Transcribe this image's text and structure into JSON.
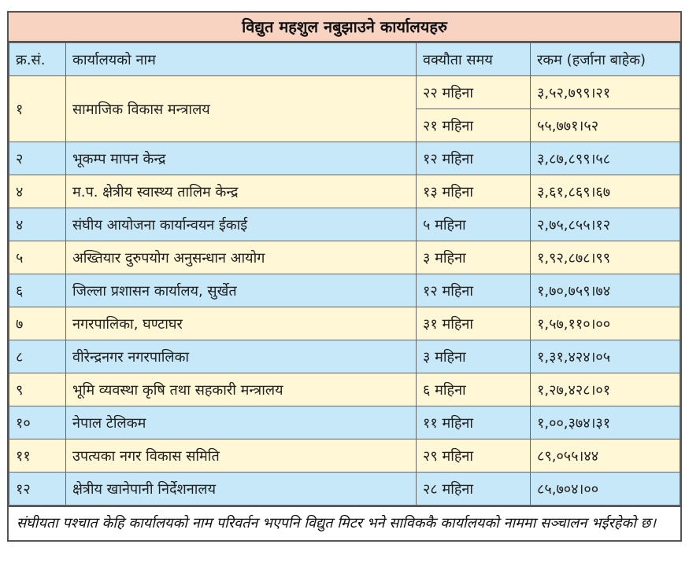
{
  "title": "विद्युत महशुल नबुझाउने कार्यालयहरु",
  "headers": [
    "क्र.सं.",
    "कार्यालयको नाम",
    "वक्यौता समय",
    "रकम (हर्जाना बाहेक)"
  ],
  "row1": {
    "sn": "१",
    "name": "सामाजिक विकास मन्त्रालय",
    "periods": [
      "२२ महिना",
      "२१ महिना"
    ],
    "amounts": [
      "३,५२,७९९।२१",
      "५५,७७१।५२"
    ]
  },
  "rows": [
    {
      "sn": "२",
      "name": "भूकम्प मापन केन्द्र",
      "period": "१२ महिना",
      "amount": "३,८७,८९९।५८"
    },
    {
      "sn": "४",
      "name": "म.प. क्षेत्रीय स्वास्थ्य तालिम केन्द्र",
      "period": "१३ महिना",
      "amount": "३,६१,८६९।६७"
    },
    {
      "sn": "४",
      "name": "संघीय आयोजना कार्यान्वयन ईकाई",
      "period": "५ महिना",
      "amount": "२,७५,८५५।१२"
    },
    {
      "sn": "५",
      "name": "अख्तियार दुरुपयोग अनुसन्धान आयोग",
      "period": "३ महिना",
      "amount": "१,९२,८७८।९९"
    },
    {
      "sn": "६",
      "name": "जिल्ला प्रशासन कार्यालय, सुर्खेत",
      "period": "१२ महिना",
      "amount": "१,७०,७५९।७४"
    },
    {
      "sn": "७",
      "name": "नगरपालिका, घण्टाघर",
      "period": "३१ महिना",
      "amount": "१,५७,११०।००"
    },
    {
      "sn": "८",
      "name": "वीरेन्द्रनगर नगरपालिका",
      "period": "३ महिना",
      "amount": "१,३१,४२४।०५"
    },
    {
      "sn": "९",
      "name": "भूमि व्यवस्था कृषि तथा सहकारी मन्त्रालय",
      "period": "६ महिना",
      "amount": "१,२७,४२८।०१"
    },
    {
      "sn": "१०",
      "name": "नेपाल टेलिकम",
      "period": "११ महिना",
      "amount": "१,००,३७४।३१"
    },
    {
      "sn": "११",
      "name": "उपत्यका नगर विकास समिति",
      "period": "२९ महिना",
      "amount": "८९,०५५।४४"
    },
    {
      "sn": "१२",
      "name": "क्षेत्रीय खानेपानी निर्देशनालय",
      "period": "२८ महिना",
      "amount": "८५,७०४।००"
    }
  ],
  "footnote": "संघीयता पश्चात केहि कार्यालयको नाम परिवर्तन भएपनि विद्युत मिटर भने साविककै कार्यालयको नाममा सञ्चालन भईरहेको छ।"
}
